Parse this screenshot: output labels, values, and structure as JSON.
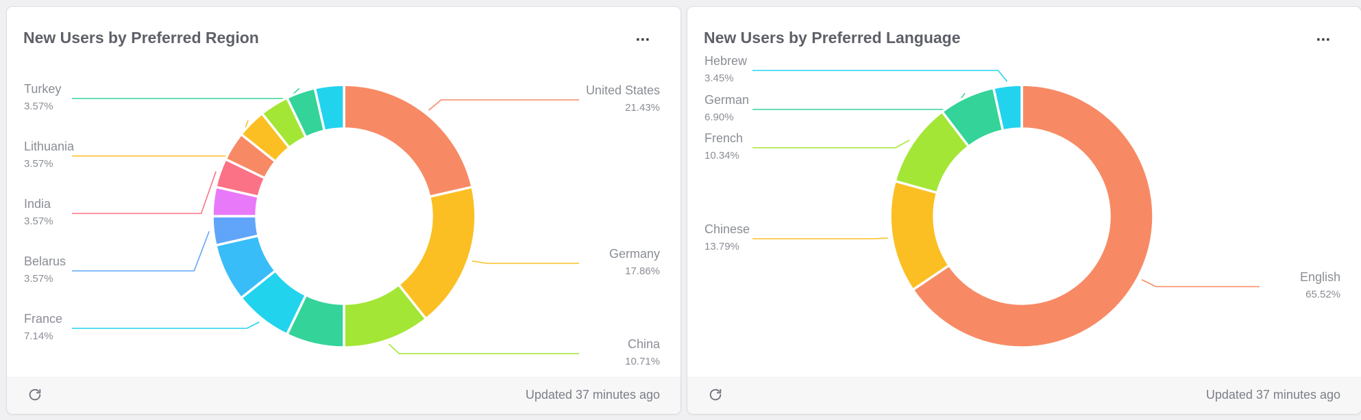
{
  "cards": [
    {
      "title": "New Users by Preferred Region",
      "menu_label": "···",
      "footer": {
        "updated_text": "Updated 37 minutes ago",
        "refresh_icon": "refresh-icon"
      },
      "chart_data": {
        "type": "pie",
        "variant": "donut",
        "start_angle_deg": 0,
        "slices": [
          {
            "label": "United States",
            "value": 21.43,
            "percent_text": "21.43%",
            "color": "#f78a64",
            "labeled": true
          },
          {
            "label": "Germany",
            "value": 17.86,
            "percent_text": "17.86%",
            "color": "#fbbf24",
            "labeled": true
          },
          {
            "label": "China",
            "value": 10.71,
            "percent_text": "10.71%",
            "color": "#a3e635",
            "labeled": true
          },
          {
            "label": "",
            "value": 7.14,
            "percent_text": "",
            "color": "#34d399",
            "labeled": false
          },
          {
            "label": "France",
            "value": 7.14,
            "percent_text": "7.14%",
            "color": "#22d3ee",
            "labeled": true
          },
          {
            "label": "",
            "value": 7.14,
            "percent_text": "",
            "color": "#38bdf8",
            "labeled": false
          },
          {
            "label": "Belarus",
            "value": 3.57,
            "percent_text": "3.57%",
            "color": "#60a5fa",
            "labeled": true
          },
          {
            "label": "",
            "value": 3.57,
            "percent_text": "",
            "color": "#e879f9",
            "labeled": false
          },
          {
            "label": "India",
            "value": 3.57,
            "percent_text": "3.57%",
            "color": "#fb7185",
            "labeled": true
          },
          {
            "label": "",
            "value": 3.57,
            "percent_text": "",
            "color": "#f78a64",
            "labeled": false
          },
          {
            "label": "Lithuania",
            "value": 3.57,
            "percent_text": "3.57%",
            "color": "#fbbf24",
            "labeled": true
          },
          {
            "label": "",
            "value": 3.57,
            "percent_text": "",
            "color": "#a3e635",
            "labeled": false
          },
          {
            "label": "Turkey",
            "value": 3.57,
            "percent_text": "3.57%",
            "color": "#34d399",
            "labeled": true
          },
          {
            "label": "",
            "value": 3.57,
            "percent_text": "",
            "color": "#22d3ee",
            "labeled": false
          }
        ]
      }
    },
    {
      "title": "New Users by Preferred Language",
      "menu_label": "···",
      "footer": {
        "updated_text": "Updated 37 minutes ago",
        "refresh_icon": "refresh-icon"
      },
      "chart_data": {
        "type": "pie",
        "variant": "donut",
        "start_angle_deg": 0,
        "slices": [
          {
            "label": "English",
            "value": 65.52,
            "percent_text": "65.52%",
            "color": "#f78a64",
            "labeled": true
          },
          {
            "label": "Chinese",
            "value": 13.79,
            "percent_text": "13.79%",
            "color": "#fbbf24",
            "labeled": true
          },
          {
            "label": "French",
            "value": 10.34,
            "percent_text": "10.34%",
            "color": "#a3e635",
            "labeled": true
          },
          {
            "label": "German",
            "value": 6.9,
            "percent_text": "6.90%",
            "color": "#34d399",
            "labeled": true
          },
          {
            "label": "Hebrew",
            "value": 3.45,
            "percent_text": "3.45%",
            "color": "#22d3ee",
            "labeled": true
          }
        ]
      }
    }
  ]
}
